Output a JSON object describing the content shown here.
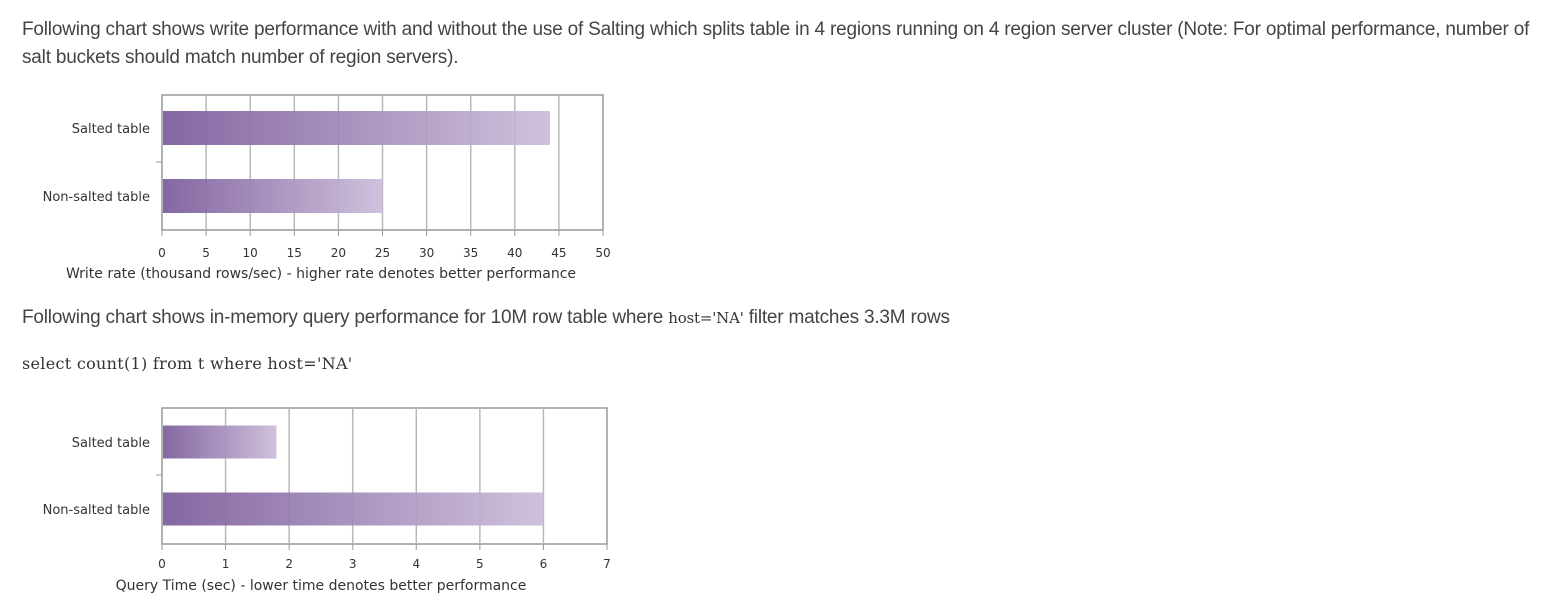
{
  "text": {
    "para1": "Following chart shows write performance with and without the use of Salting which splits table in 4 regions running on 4 region server cluster (Note: For optimal performance, number of salt buckets should match number of region servers).",
    "para2_before": "Following chart shows in-memory query performance for 10M row table where ",
    "para2_code": "host='NA'",
    "para2_after": " filter matches 3.3M rows",
    "code_line": "select count(1) from t where host='NA'"
  },
  "colors": {
    "bar_dark": "#7a5a9a",
    "bar_light": "#cbbcd9",
    "grid": "#b8b8b8",
    "frame": "#999999"
  },
  "chart_data": [
    {
      "type": "bar",
      "orientation": "horizontal",
      "categories": [
        "Salted table",
        "Non-salted table"
      ],
      "values": [
        44,
        25
      ],
      "xlabel": "Write rate (thousand rows/sec) - higher rate denotes better performance",
      "xlim": [
        0,
        50
      ],
      "xticks": [
        "0",
        "5",
        "10",
        "15",
        "20",
        "25",
        "30",
        "35",
        "40",
        "45",
        "50"
      ],
      "grid": true
    },
    {
      "type": "bar",
      "orientation": "horizontal",
      "categories": [
        "Salted table",
        "Non-salted table"
      ],
      "values": [
        1.8,
        6
      ],
      "xlabel": "Query Time (sec) - lower time denotes better performance",
      "xlim": [
        0,
        7
      ],
      "xticks": [
        "0",
        "1",
        "2",
        "3",
        "4",
        "5",
        "6",
        "7"
      ],
      "grid": true
    }
  ]
}
